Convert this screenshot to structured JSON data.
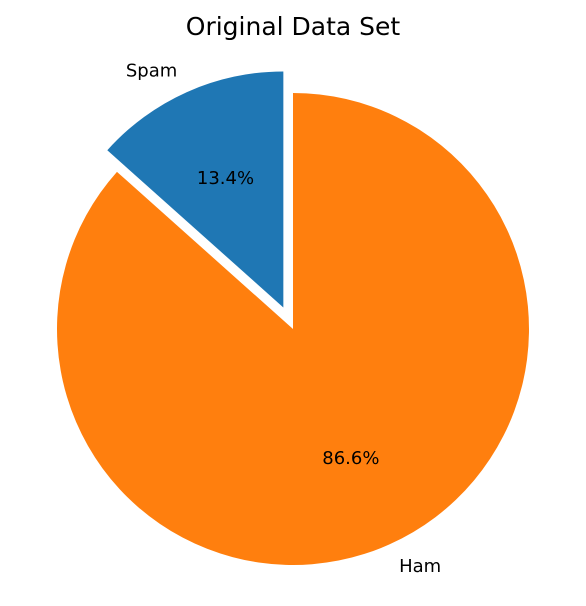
{
  "chart_data": {
    "type": "pie",
    "title": "Original Data Set",
    "slices": [
      {
        "label": "Spam",
        "value": 13.4,
        "pct_label": "13.4%",
        "color": "#1f77b4",
        "exploded": true
      },
      {
        "label": "Ham",
        "value": 86.6,
        "pct_label": "86.6%",
        "color": "#ff7f0e",
        "exploded": false
      }
    ],
    "start_angle_deg": 90,
    "direction": "counterclockwise",
    "legend": "none"
  }
}
